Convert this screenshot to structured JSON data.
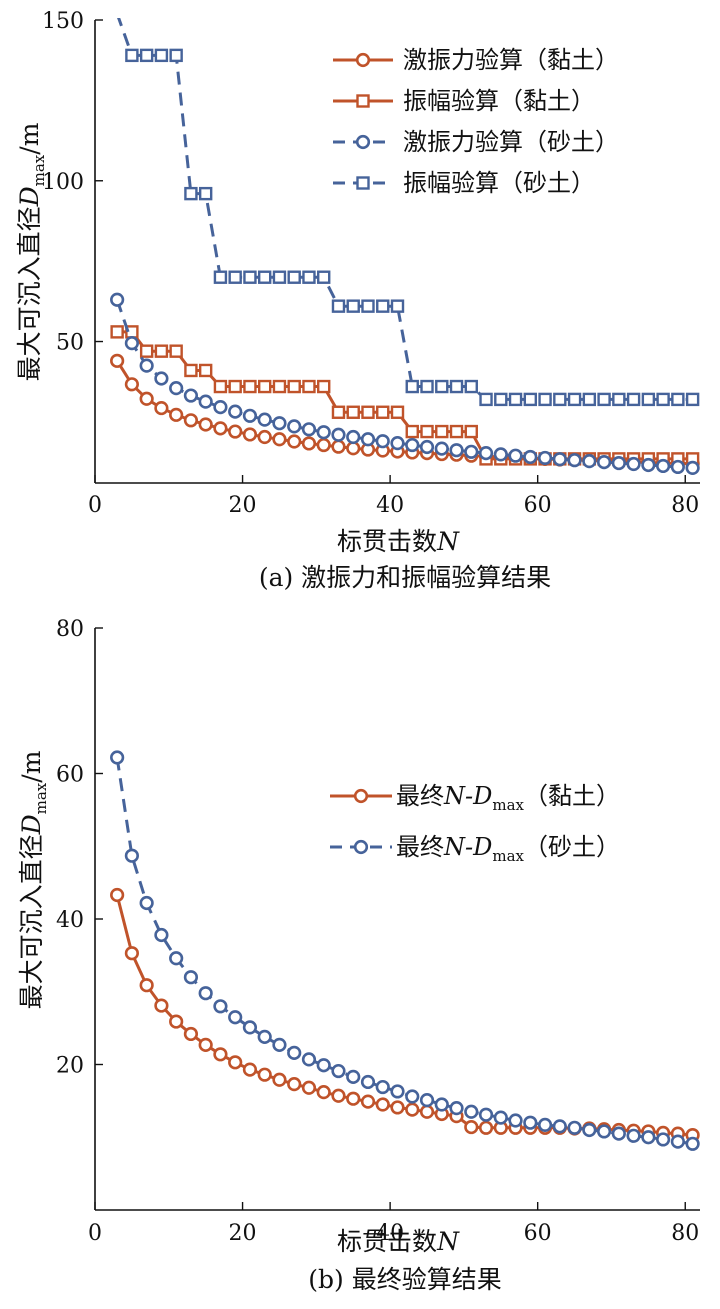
{
  "colors": {
    "clay": "#c0532a",
    "sand": "#46639a",
    "axis": "#111111"
  },
  "chart_data": [
    {
      "type": "line",
      "panel": "a",
      "caption": "(a) 激振力和振幅验算结果",
      "xlabel": {
        "main": "标贯击数",
        "var": "N"
      },
      "ylabel": {
        "main": "最大可沉入直径",
        "var": "D",
        "sub": "max",
        "unit": "/m"
      },
      "xlim": [
        0,
        82
      ],
      "ylim": [
        6,
        150
      ],
      "xticks": [
        "0",
        "20",
        "40",
        "60",
        "80"
      ],
      "yticks": [
        "50",
        "100",
        "150"
      ],
      "legend_position": "top-right",
      "x": [
        3,
        5,
        7,
        9,
        11,
        13,
        15,
        17,
        19,
        21,
        23,
        25,
        27,
        29,
        31,
        33,
        35,
        37,
        39,
        41,
        43,
        45,
        47,
        49,
        51,
        53,
        55,
        57,
        59,
        61,
        63,
        65,
        67,
        69,
        71,
        73,
        75,
        77,
        79,
        81
      ],
      "series": [
        {
          "key": "exc_clay",
          "name": "激振力验算（黏土）",
          "color": "#c0532a",
          "dash": false,
          "marker": "circle",
          "values": [
            44,
            36.7,
            32.2,
            29.3,
            27.2,
            25.5,
            24.2,
            23,
            22,
            21.1,
            20.3,
            19.6,
            18.9,
            18.3,
            17.8,
            17.3,
            16.8,
            16.4,
            16.1,
            15.8,
            15.5,
            15.3,
            15,
            14.8,
            14.5,
            14.3,
            14.1,
            13.9,
            13.7,
            13.5,
            13.3,
            13.2,
            13,
            12.9,
            12.7,
            12.5,
            12.4,
            12.2,
            12.1,
            12
          ]
        },
        {
          "key": "amp_clay",
          "name": "振幅验算（黏土）",
          "color": "#c0532a",
          "dash": false,
          "marker": "square",
          "values": [
            53,
            53,
            47,
            47,
            47,
            41,
            41,
            36,
            36,
            36,
            36,
            36,
            36,
            36,
            36,
            28,
            28,
            28,
            28,
            28,
            22,
            22,
            22,
            22,
            22,
            13.5,
            13.5,
            13.5,
            13.5,
            13.5,
            13.5,
            13.5,
            13.5,
            13.5,
            13.5,
            13.5,
            13.5,
            13.5,
            13.5,
            13.5
          ]
        },
        {
          "key": "exc_sand",
          "name": "激振力验算（砂土）",
          "color": "#46639a",
          "dash": true,
          "marker": "circle",
          "values": [
            63,
            49.5,
            42.5,
            38.5,
            35.5,
            33.2,
            31.3,
            29.6,
            28.2,
            26.9,
            25.7,
            24.6,
            23.6,
            22.7,
            21.8,
            21,
            20.3,
            19.6,
            19,
            18.4,
            17.8,
            17.2,
            16.7,
            16.2,
            15.7,
            15.3,
            14.9,
            14.5,
            14.1,
            13.8,
            13.4,
            13.1,
            12.8,
            12.5,
            12.2,
            11.9,
            11.6,
            11.3,
            11,
            10.7
          ]
        },
        {
          "key": "amp_sand",
          "name": "振幅验算（砂土）",
          "color": "#46639a",
          "dash": true,
          "marker": "square",
          "values": [
            152,
            139,
            139,
            139,
            139,
            96,
            96,
            70,
            70,
            70,
            70,
            70,
            70,
            70,
            70,
            61,
            61,
            61,
            61,
            61,
            36,
            36,
            36,
            36,
            36,
            32,
            32,
            32,
            32,
            32,
            32,
            32,
            32,
            32,
            32,
            32,
            32,
            32,
            32,
            32
          ]
        }
      ]
    },
    {
      "type": "line",
      "panel": "b",
      "caption": "(b) 最终验算结果",
      "xlabel": {
        "main": "标贯击数",
        "var": "N"
      },
      "ylabel": {
        "main": "最大可沉入直径",
        "var": "D",
        "sub": "max",
        "unit": "/m"
      },
      "xlim": [
        0,
        82
      ],
      "ylim": [
        0,
        80
      ],
      "xticks": [
        "0",
        "20",
        "40",
        "60",
        "80"
      ],
      "yticks": [
        "20",
        "40",
        "60",
        "80"
      ],
      "legend_position": "top-right",
      "x": [
        3,
        5,
        7,
        9,
        11,
        13,
        15,
        17,
        19,
        21,
        23,
        25,
        27,
        29,
        31,
        33,
        35,
        37,
        39,
        41,
        43,
        45,
        47,
        49,
        51,
        53,
        55,
        57,
        59,
        61,
        63,
        65,
        67,
        69,
        71,
        73,
        75,
        77,
        79,
        81
      ],
      "series": [
        {
          "key": "final_clay",
          "name": "最终N-Dmax（黏土）",
          "legend_pre": "最终",
          "legend_var": "N-D",
          "legend_sub": "max",
          "legend_post": "（黏土）",
          "color": "#c0532a",
          "dash": false,
          "marker": "circle",
          "values": [
            43.3,
            35.3,
            30.9,
            28.1,
            25.9,
            24.2,
            22.7,
            21.4,
            20.3,
            19.3,
            18.6,
            17.9,
            17.3,
            16.8,
            16.2,
            15.7,
            15.3,
            14.9,
            14.5,
            14.1,
            13.8,
            13.5,
            13.2,
            12.9,
            11.4,
            11.3,
            11.3,
            11.3,
            11.3,
            11.3,
            11.3,
            11.2,
            11.2,
            11.1,
            11,
            10.9,
            10.8,
            10.6,
            10.5,
            10.3
          ]
        },
        {
          "key": "final_sand",
          "name": "最终N-Dmax（砂土）",
          "legend_pre": "最终",
          "legend_var": "N-D",
          "legend_sub": "max",
          "legend_post": "（砂土）",
          "color": "#46639a",
          "dash": true,
          "marker": "circle",
          "values": [
            62.2,
            48.7,
            42.2,
            37.8,
            34.6,
            32,
            29.8,
            28,
            26.5,
            25.1,
            23.8,
            22.7,
            21.6,
            20.7,
            19.9,
            19.1,
            18.3,
            17.6,
            16.9,
            16.3,
            15.6,
            15.1,
            14.5,
            14,
            13.5,
            13.1,
            12.7,
            12.3,
            12,
            11.7,
            11.5,
            11.3,
            11,
            10.8,
            10.5,
            10.2,
            10,
            9.7,
            9.4,
            9.1
          ]
        }
      ]
    }
  ]
}
